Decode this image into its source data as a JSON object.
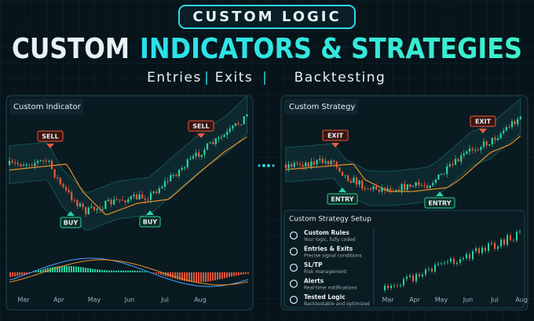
{
  "header": {
    "badge": "CUSTOM LOGIC",
    "title_white": "CUSTOM",
    "title_accent": "INDICATORS & STRATEGIES",
    "subtitle": [
      "Entries",
      "Exits",
      "Backtesting"
    ],
    "separator": "|"
  },
  "left_panel": {
    "title": "Custom Indicator",
    "signals": [
      "SELL",
      "SELL",
      "BUY",
      "BUY"
    ],
    "months": [
      "Mar",
      "Apr",
      "May",
      "Jun",
      "Jul",
      "Aug"
    ]
  },
  "right_panel": {
    "title": "Custom Strategy",
    "signals": [
      "EXIT",
      "EXIT",
      "ENTRY",
      "ENTRY"
    ],
    "setup": {
      "title": "Custom Strategy Setup",
      "features": [
        {
          "title": "Custom Rules",
          "description": "Your logic, fully coded"
        },
        {
          "title": "Entries & Exits",
          "description": "Precise signal conditions"
        },
        {
          "title": "SL/TP",
          "description": "Risk management"
        },
        {
          "title": "Alerts",
          "description": "Real-time notifications"
        },
        {
          "title": "Tested Logic",
          "description": "Backtestable and optimized"
        }
      ]
    },
    "months": [
      "Mar",
      "Apr",
      "May",
      "Jun",
      "Jul",
      "Aug"
    ]
  }
}
